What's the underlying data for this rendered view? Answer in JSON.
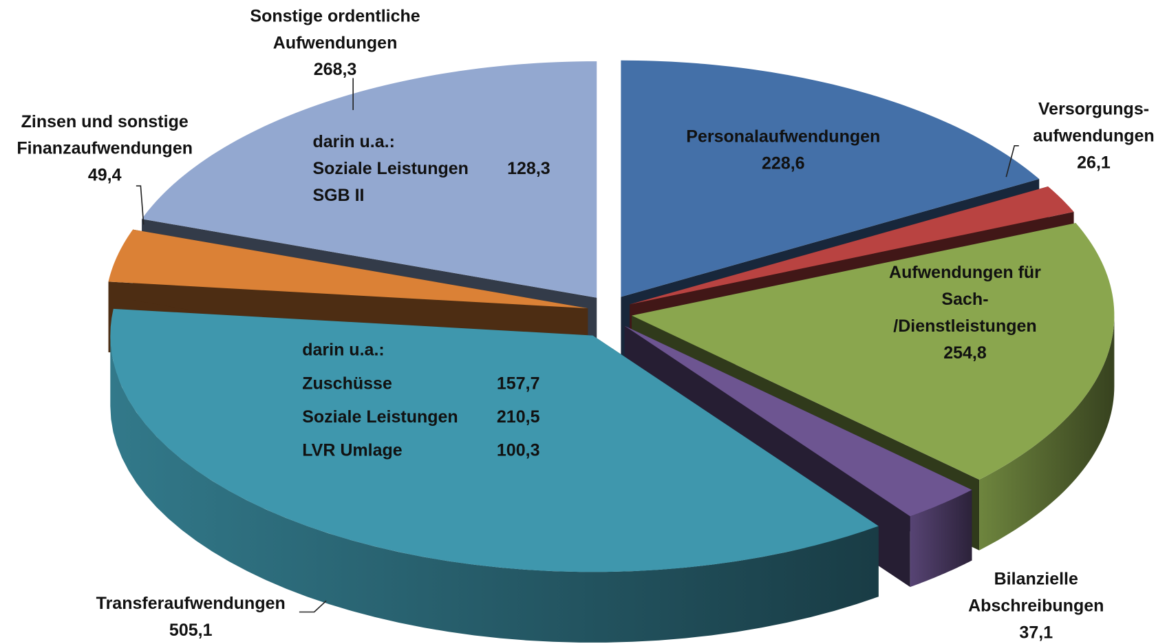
{
  "chart_data": {
    "type": "pie3d",
    "categories": [
      "Personalaufwendungen",
      "Versorgungs-\naufwendungen",
      "Aufwendungen für Sach-\n/Dienstleistungen",
      "Bilanzielle\nAbschreibungen",
      "Transferaufwendungen",
      "Zinsen und sonstige\nFinanzaufwendungen",
      "Sonstige ordentliche\nAufwendungen"
    ],
    "values": [
      228.6,
      26.1,
      254.8,
      37.1,
      505.1,
      49.4,
      268.3
    ],
    "value_labels": [
      "228,6",
      "26,1",
      "254,8",
      "37,1",
      "505,1",
      "49,4",
      "268,3"
    ],
    "colors": [
      "#4470a8",
      "#b94341",
      "#8aa64e",
      "#6d5591",
      "#3f97ad",
      "#db8136",
      "#93a8d0"
    ],
    "annotations": [
      {
        "slice": 6,
        "note": "darin u.a.:",
        "items": [
          {
            "label": "Soziale Leistungen\nSGB II",
            "value": 128.3,
            "value_label": "128,3"
          }
        ]
      },
      {
        "slice": 4,
        "note": "darin u.a.:",
        "items": [
          {
            "label": "Zuschüsse",
            "value": 157.7,
            "value_label": "157,7"
          },
          {
            "label": "Soziale Leistungen",
            "value": 210.5,
            "value_label": "210,5"
          },
          {
            "label": "LVR Umlage",
            "value": 100.3,
            "value_label": "100,3"
          }
        ]
      }
    ]
  }
}
